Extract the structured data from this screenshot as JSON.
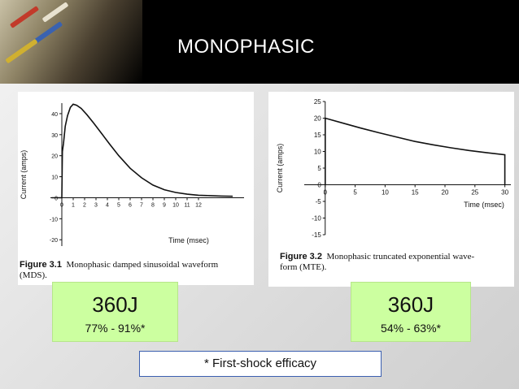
{
  "title": "MONOPHASIC",
  "colors": {
    "accent_green": "#ccffa0",
    "title_bar": "#000000",
    "note_border": "#3b5fb0"
  },
  "chart_data": [
    {
      "type": "line",
      "caption_label": "Figure 3.1",
      "caption_text": "Monophasic damped sinusoidal waveform",
      "caption_text_line2": "(MDS).",
      "title": "",
      "xlabel": "Time (msec)",
      "ylabel": "Current (amps)",
      "xlim": [
        -1,
        16
      ],
      "ylim": [
        -23,
        45
      ],
      "x_ticks": [
        0,
        1,
        2,
        3,
        4,
        5,
        6,
        7,
        8,
        9,
        10,
        11,
        12
      ],
      "y_ticks": [
        -20,
        -10,
        0,
        10,
        20,
        30,
        40
      ],
      "grid": false,
      "series": [
        {
          "x": [
            -0.9,
            -0.1,
            0,
            0.05,
            0.15,
            0.3,
            0.5,
            0.75,
            1,
            1.3,
            1.7,
            2.2,
            2.8,
            3.5,
            4.2,
            5,
            6,
            7,
            8,
            9,
            10,
            11,
            12,
            13,
            14,
            15
          ],
          "y": [
            0,
            0,
            0,
            22,
            26,
            34,
            39,
            43,
            44.5,
            44,
            42.5,
            39.5,
            35.5,
            30.5,
            25.5,
            20,
            14,
            9.5,
            6,
            3.8,
            2.5,
            1.7,
            1.2,
            1,
            0.8,
            0.7
          ]
        }
      ]
    },
    {
      "type": "line",
      "caption_label": "Figure 3.2",
      "caption_text": "Monophasic truncated exponential wave-",
      "caption_text_line2": "form (MTE).",
      "title": "",
      "xlabel": "Time (msec)",
      "ylabel": "Current (amps)",
      "xlim": [
        -3.5,
        31
      ],
      "ylim": [
        -15,
        25
      ],
      "x_ticks": [
        0,
        5,
        10,
        15,
        20,
        25,
        30
      ],
      "y_ticks": [
        -15,
        -10,
        -5,
        0,
        5,
        10,
        15,
        20,
        25
      ],
      "grid": false,
      "series": [
        {
          "x": [
            0,
            0,
            3,
            6,
            9,
            12,
            15,
            18,
            21,
            24,
            27,
            30,
            30
          ],
          "y": [
            0,
            20,
            18.5,
            17,
            15.6,
            14.3,
            13,
            12,
            11.1,
            10.3,
            9.6,
            9,
            0
          ]
        }
      ]
    }
  ],
  "mds_box": {
    "energy": "360J",
    "efficacy": "77% - 91%*"
  },
  "mte_box": {
    "energy": "360J",
    "efficacy": "54% - 63%*"
  },
  "footnote": "* First-shock efficacy"
}
